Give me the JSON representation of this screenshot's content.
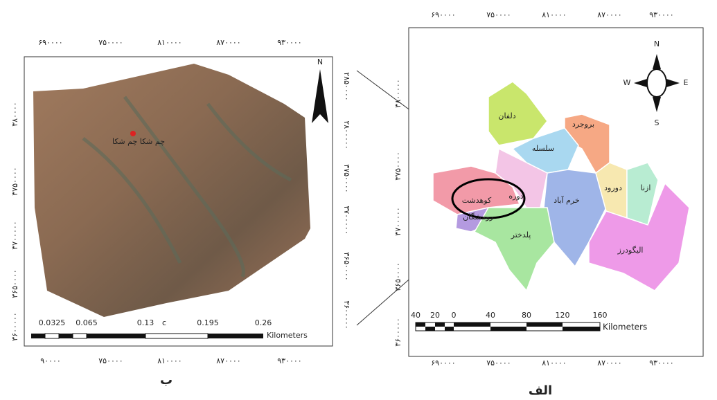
{
  "panels": [
    {
      "caption": "ب",
      "top_ticks": [
        "۶۹۰۰۰۰",
        "۷۵۰۰۰۰",
        "۸۱۰۰۰۰",
        "۸۷۰۰۰۰",
        "۹۳۰۰۰۰"
      ],
      "bottom_ticks": [
        "۹۰۰۰۰",
        "۷۵۰۰۰۰",
        "۸۱۰۰۰۰",
        "۸۷۰۰۰۰",
        "۹۳۰۰۰۰"
      ],
      "left_ticks": [
        "۳۸۰۰۰۰",
        "۳۷۵۰۰۰۰",
        "۳۷۰۰۰۰۰",
        "۳۶۵۰۰۰۰",
        "۳۶۰۰۰۰۰"
      ],
      "right_ticks": [
        "۲۸۵۰۰۰۰",
        "۲۸۰۰۰۰۰",
        "۳۷۵۰۰۰۰",
        "۳۷۰۰۰۰۰",
        "۳۶۵۰۰۰۰",
        "۳۶۰۰۰۰۰"
      ],
      "scale_labels": [
        "0.0325",
        "0.065",
        "0.13",
        "c",
        "0.195",
        "0.26"
      ],
      "scale_unit": "Kilometers",
      "north": "N",
      "place": "چم شکا  چم شکا"
    },
    {
      "caption": "الف",
      "top_ticks": [
        "۶۹۰۰۰۰",
        "۷۵۰۰۰۰",
        "۸۱۰۰۰۰",
        "۸۷۰۰۰۰",
        "۹۳۰۰۰۰"
      ],
      "bottom_ticks": [
        "۶۹۰۰۰۰",
        "۷۵۰۰۰۰",
        "۸۱۰۰۰۰",
        "۸۷۰۰۰۰",
        "۹۳۰۰۰۰"
      ],
      "left_ticks": [
        "۳۸۰۰۰۰۰",
        "۳۷۵۰۰۰۰",
        "۳۷۰۰۰۰۰",
        "۳۶۵۰۰۰۰",
        "۳۶۰۰۰۰۰"
      ],
      "scale_labels": [
        "40",
        "20",
        "0",
        "40",
        "80",
        "120",
        "160"
      ],
      "scale_unit": "Kilometers",
      "compass": [
        "N",
        "S",
        "W",
        "E"
      ],
      "regions": [
        "دلفان",
        "بروجرد",
        "سلسله",
        "دوره",
        "کوهدشت",
        "خرم آباد",
        "دورود",
        "ازنا",
        "رومشگان",
        "پلدختر",
        "الیگودرز"
      ]
    }
  ]
}
